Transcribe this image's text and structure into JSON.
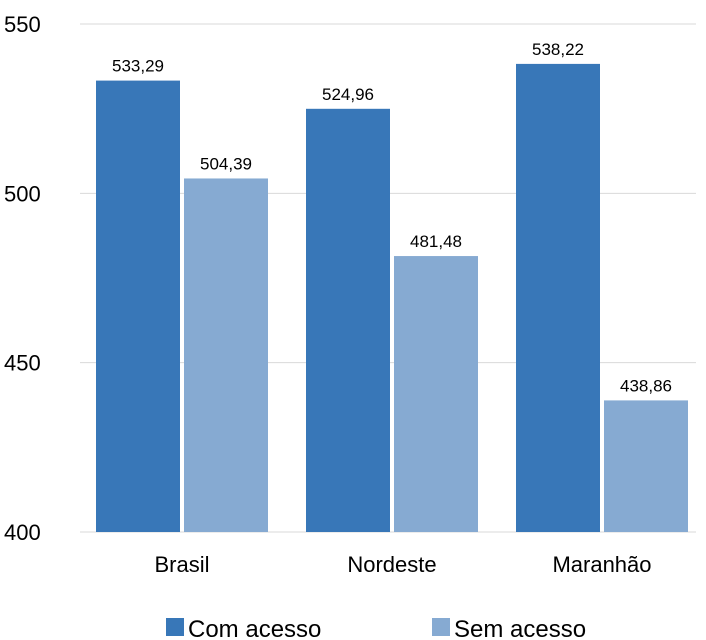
{
  "chart_data": {
    "type": "bar",
    "categories": [
      "Brasil",
      "Nordeste",
      "Maranhão"
    ],
    "series": [
      {
        "name": "Com acesso",
        "color": "#3877b8",
        "values": [
          533.29,
          524.96,
          538.22
        ],
        "labels": [
          "533,29",
          "524,96",
          "538,22"
        ]
      },
      {
        "name": "Sem acesso",
        "color": "#86aad2",
        "values": [
          504.39,
          481.48,
          438.86
        ],
        "labels": [
          "504,39",
          "481,48",
          "438,86"
        ]
      }
    ],
    "ylim": [
      400,
      550
    ],
    "yticks": [
      400,
      450,
      500,
      550
    ],
    "ytick_labels": [
      "400",
      "450",
      "500",
      "550"
    ],
    "grid": true,
    "legend": "bottom"
  }
}
